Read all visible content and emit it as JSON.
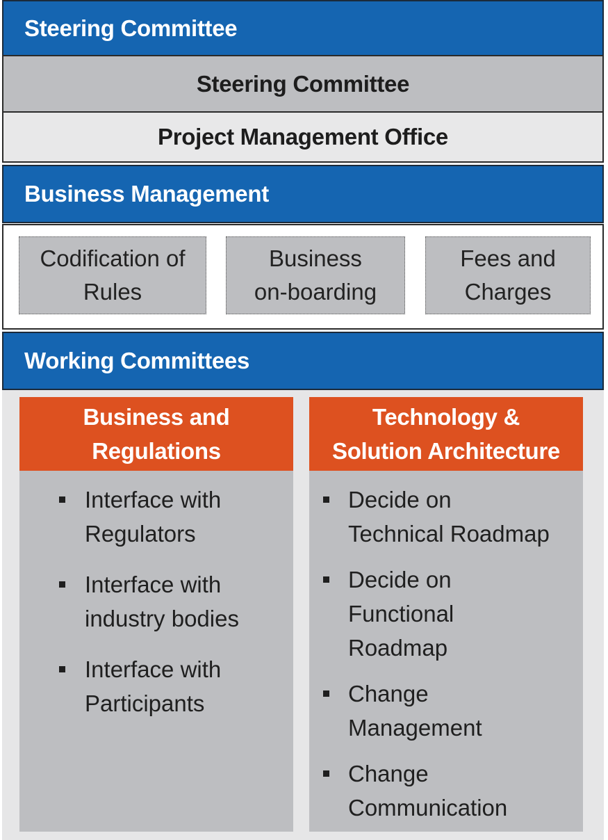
{
  "steering": {
    "band_title": "Steering Committee",
    "row1": "Steering Committee",
    "row2": "Project Management Office"
  },
  "business_management": {
    "band_title": "Business Management",
    "boxes": [
      {
        "line1": "Codification of",
        "line2": "Rules"
      },
      {
        "line1": "Business",
        "line2": "on-boarding"
      },
      {
        "line1": "Fees and",
        "line2": "Charges"
      }
    ]
  },
  "working_committees": {
    "band_title": "Working Committees",
    "columns": [
      {
        "header_line1": "Business and",
        "header_line2": "Regulations",
        "items": [
          {
            "lines": [
              "Interface with",
              "Regulators"
            ]
          },
          {
            "lines": [
              "Interface with",
              "industry bodies"
            ]
          },
          {
            "lines": [
              "Interface with",
              "Participants"
            ]
          }
        ]
      },
      {
        "header_line1": "Technology &",
        "header_line2": "Solution Architecture",
        "items": [
          {
            "lines": [
              "Decide on",
              "Technical Roadmap"
            ]
          },
          {
            "lines": [
              "Decide on",
              "Functional",
              "Roadmap"
            ]
          },
          {
            "lines": [
              "Change",
              "Management"
            ]
          },
          {
            "lines": [
              "Change",
              "Communication"
            ]
          }
        ]
      }
    ]
  },
  "colors": {
    "band_blue": "#1565b1",
    "header_orange": "#dd5120",
    "panel_grey": "#bdbec1",
    "light_grey": "#e6e6e7"
  }
}
